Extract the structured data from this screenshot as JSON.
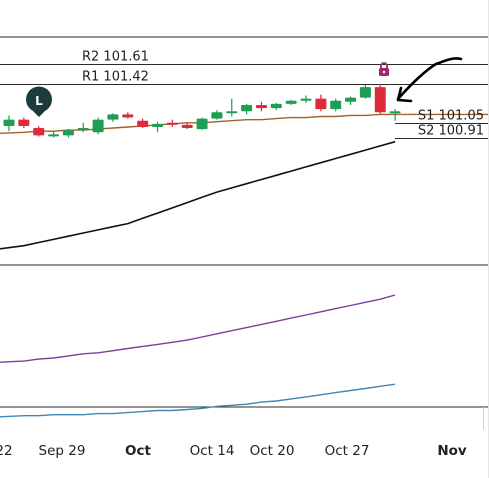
{
  "chart_data": {
    "type": "candlestick",
    "x_ticks": [
      {
        "label": "22",
        "bold": false
      },
      {
        "label": "Sep 29",
        "bold": false
      },
      {
        "label": "Oct",
        "bold": true
      },
      {
        "label": "Oct 14",
        "bold": false
      },
      {
        "label": "Oct 20",
        "bold": false
      },
      {
        "label": "Oct 27",
        "bold": false
      },
      {
        "label": "Nov",
        "bold": true
      }
    ],
    "levels": [
      {
        "label": "R2 101.61",
        "value": 101.61
      },
      {
        "label": "R1 101.42",
        "value": 101.42
      },
      {
        "label": "S1 101.05",
        "value": 101.05
      },
      {
        "label": "S2 100.91",
        "value": 100.91
      }
    ],
    "marker": {
      "letter": "L",
      "color": "#1c3b3b"
    },
    "colors": {
      "up": "#1f9d55",
      "down": "#dc2b3b",
      "ma_short": "#a0622d",
      "ma_mid": "#111111",
      "ma_long1": "#7b3f9e",
      "ma_long2": "#3f87b3",
      "lock": "#a32672"
    },
    "candles": [
      {
        "o": 101.02,
        "h": 101.12,
        "l": 100.97,
        "c": 101.08
      },
      {
        "o": 101.08,
        "h": 101.1,
        "l": 101.0,
        "c": 101.02
      },
      {
        "o": 101.0,
        "h": 101.02,
        "l": 100.92,
        "c": 100.93
      },
      {
        "o": 100.93,
        "h": 100.97,
        "l": 100.91,
        "c": 100.94
      },
      {
        "o": 100.93,
        "h": 100.99,
        "l": 100.91,
        "c": 100.98
      },
      {
        "o": 100.98,
        "h": 101.05,
        "l": 100.96,
        "c": 101.0
      },
      {
        "o": 100.96,
        "h": 101.1,
        "l": 100.94,
        "c": 101.08
      },
      {
        "o": 101.08,
        "h": 101.14,
        "l": 101.06,
        "c": 101.13
      },
      {
        "o": 101.13,
        "h": 101.15,
        "l": 101.09,
        "c": 101.1
      },
      {
        "o": 101.07,
        "h": 101.09,
        "l": 101.0,
        "c": 101.01
      },
      {
        "o": 101.01,
        "h": 101.06,
        "l": 100.96,
        "c": 101.04
      },
      {
        "o": 101.05,
        "h": 101.08,
        "l": 101.01,
        "c": 101.03
      },
      {
        "o": 101.03,
        "h": 101.05,
        "l": 100.99,
        "c": 101.0
      },
      {
        "o": 100.99,
        "h": 101.1,
        "l": 100.98,
        "c": 101.09
      },
      {
        "o": 101.09,
        "h": 101.17,
        "l": 101.08,
        "c": 101.15
      },
      {
        "o": 101.15,
        "h": 101.28,
        "l": 101.11,
        "c": 101.16
      },
      {
        "o": 101.16,
        "h": 101.23,
        "l": 101.13,
        "c": 101.22
      },
      {
        "o": 101.22,
        "h": 101.25,
        "l": 101.16,
        "c": 101.19
      },
      {
        "o": 101.19,
        "h": 101.24,
        "l": 101.17,
        "c": 101.23
      },
      {
        "o": 101.23,
        "h": 101.27,
        "l": 101.22,
        "c": 101.26
      },
      {
        "o": 101.26,
        "h": 101.31,
        "l": 101.24,
        "c": 101.28
      },
      {
        "o": 101.28,
        "h": 101.32,
        "l": 101.16,
        "c": 101.18
      },
      {
        "o": 101.18,
        "h": 101.28,
        "l": 101.16,
        "c": 101.26
      },
      {
        "o": 101.25,
        "h": 101.3,
        "l": 101.22,
        "c": 101.29
      },
      {
        "o": 101.29,
        "h": 101.41,
        "l": 101.28,
        "c": 101.39
      },
      {
        "o": 101.39,
        "h": 101.42,
        "l": 101.13,
        "c": 101.15
      },
      {
        "o": 101.16,
        "h": 101.18,
        "l": 101.07,
        "c": 101.16
      }
    ],
    "ma_short": [
      100.95,
      100.96,
      100.97,
      100.97,
      100.98,
      100.98,
      100.99,
      101.0,
      101.01,
      101.02,
      101.03,
      101.04,
      101.05,
      101.05,
      101.06,
      101.07,
      101.08,
      101.08,
      101.09,
      101.1,
      101.1,
      101.11,
      101.11,
      101.12,
      101.12,
      101.13,
      101.13
    ],
    "ma_mid": [
      99.85,
      99.88,
      99.91,
      99.94,
      99.97,
      100.0,
      100.03,
      100.06,
      100.09,
      100.14,
      100.19,
      100.24,
      100.29,
      100.34,
      100.39,
      100.43,
      100.47,
      100.51,
      100.55,
      100.59,
      100.63,
      100.67,
      100.71,
      100.75,
      100.79,
      100.83,
      100.87
    ],
    "ma_long1": [
      98.77,
      98.78,
      98.8,
      98.81,
      98.83,
      98.85,
      98.86,
      98.88,
      98.9,
      98.92,
      98.94,
      98.96,
      98.98,
      99.01,
      99.04,
      99.07,
      99.1,
      99.13,
      99.16,
      99.19,
      99.22,
      99.25,
      99.28,
      99.31,
      99.34,
      99.37,
      99.41
    ],
    "ma_long2": [
      98.25,
      98.26,
      98.26,
      98.27,
      98.27,
      98.27,
      98.28,
      98.28,
      98.29,
      98.3,
      98.31,
      98.31,
      98.32,
      98.33,
      98.35,
      98.36,
      98.37,
      98.39,
      98.4,
      98.42,
      98.44,
      98.46,
      98.48,
      98.5,
      98.52,
      98.54,
      98.56
    ]
  }
}
